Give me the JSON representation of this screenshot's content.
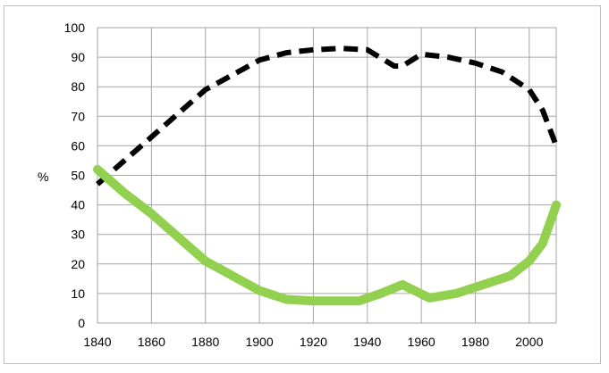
{
  "chart_data": {
    "type": "line",
    "title": "",
    "xlabel": "",
    "ylabel": "%",
    "xlim": [
      1840,
      2010
    ],
    "ylim": [
      0,
      100
    ],
    "x_ticks": [
      1840,
      1860,
      1880,
      1900,
      1920,
      1940,
      1960,
      1980,
      2000
    ],
    "y_ticks": [
      0,
      10,
      20,
      30,
      40,
      50,
      60,
      70,
      80,
      90,
      100
    ],
    "grid": true,
    "legend": "none",
    "series": [
      {
        "color": "#000000",
        "style": "dashed",
        "points": [
          [
            1840,
            47
          ],
          [
            1850,
            55
          ],
          [
            1860,
            63
          ],
          [
            1870,
            71
          ],
          [
            1880,
            79
          ],
          [
            1890,
            84
          ],
          [
            1900,
            89
          ],
          [
            1910,
            91.5
          ],
          [
            1920,
            92.5
          ],
          [
            1930,
            93
          ],
          [
            1940,
            92.5
          ],
          [
            1950,
            87
          ],
          [
            1953,
            87
          ],
          [
            1960,
            91
          ],
          [
            1970,
            90
          ],
          [
            1980,
            88
          ],
          [
            1990,
            85
          ],
          [
            2000,
            79
          ],
          [
            2005,
            72
          ],
          [
            2010,
            60
          ]
        ]
      },
      {
        "color": "#92d050",
        "style": "solid",
        "points": [
          [
            1840,
            52
          ],
          [
            1850,
            44
          ],
          [
            1860,
            37
          ],
          [
            1870,
            29
          ],
          [
            1880,
            21
          ],
          [
            1890,
            16
          ],
          [
            1900,
            11
          ],
          [
            1910,
            8
          ],
          [
            1920,
            7.5
          ],
          [
            1930,
            7.5
          ],
          [
            1937,
            7.5
          ],
          [
            1945,
            10
          ],
          [
            1953,
            13
          ],
          [
            1963,
            8.5
          ],
          [
            1973,
            10
          ],
          [
            1983,
            13
          ],
          [
            1993,
            16
          ],
          [
            2000,
            21
          ],
          [
            2005,
            27
          ],
          [
            2010,
            40
          ]
        ]
      }
    ]
  }
}
